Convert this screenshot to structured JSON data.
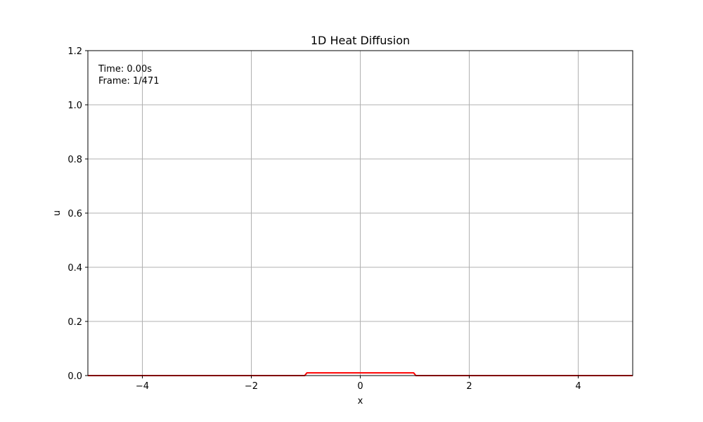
{
  "chart_data": {
    "type": "line",
    "title": "1D Heat Diffusion",
    "xlabel": "x",
    "ylabel": "u",
    "xlim": [
      -5,
      5
    ],
    "ylim": [
      0,
      1.2
    ],
    "x_ticks": [
      -4,
      -2,
      0,
      2,
      4
    ],
    "x_tick_labels": [
      "−4",
      "−2",
      "0",
      "2",
      "4"
    ],
    "y_ticks": [
      0,
      0.2,
      0.4,
      0.6,
      0.8,
      1.0,
      1.2
    ],
    "y_tick_labels": [
      "0.0",
      "0.2",
      "0.4",
      "0.6",
      "0.8",
      "1.0",
      "1.2"
    ],
    "grid": true,
    "series": [
      {
        "color": "#ff0000",
        "x": [
          -5,
          -1.02,
          -0.98,
          0.98,
          1.02,
          5
        ],
        "y": [
          0,
          0,
          0.01,
          0.01,
          0,
          0
        ]
      }
    ],
    "annotations": {
      "time": "Time: 0.00s",
      "frame": "Frame: 1/471"
    }
  }
}
